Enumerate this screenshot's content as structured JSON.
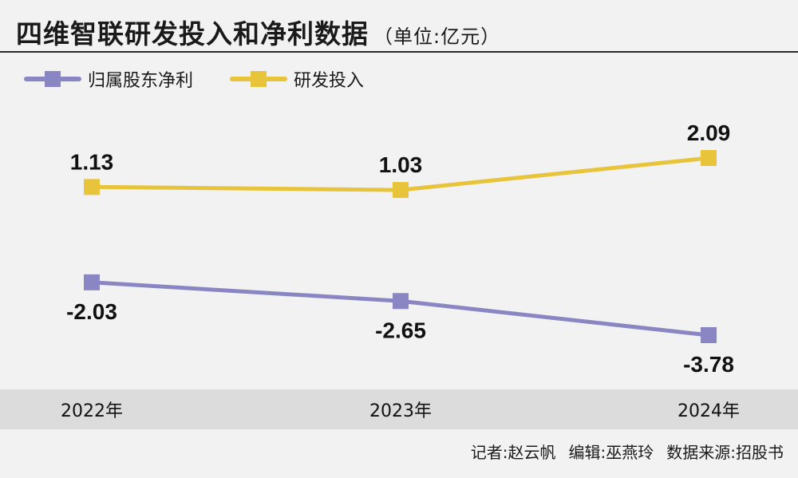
{
  "chart_data": {
    "type": "line",
    "title": "四维智联研发投入和净利数据",
    "unit": "（单位:亿元）",
    "categories": [
      "2022年",
      "2023年",
      "2024年"
    ],
    "series": [
      {
        "name": "归属股东净利",
        "values": [
          -2.03,
          -2.65,
          -3.78
        ],
        "color": "#8a86c4",
        "labels": [
          "-2.03",
          "-2.65",
          "-3.78"
        ],
        "label_side": "below"
      },
      {
        "name": "研发投入",
        "values": [
          1.13,
          1.03,
          2.09
        ],
        "color": "#e8c43a",
        "labels": [
          "1.13",
          "1.03",
          "2.09"
        ],
        "label_side": "above"
      }
    ],
    "xlabel": "",
    "ylabel": "",
    "legend": "top-left",
    "grid": false
  },
  "footer": {
    "reporter": "记者:赵云帆",
    "editor": "编辑:巫燕玲",
    "source": "数据来源:招股书"
  }
}
